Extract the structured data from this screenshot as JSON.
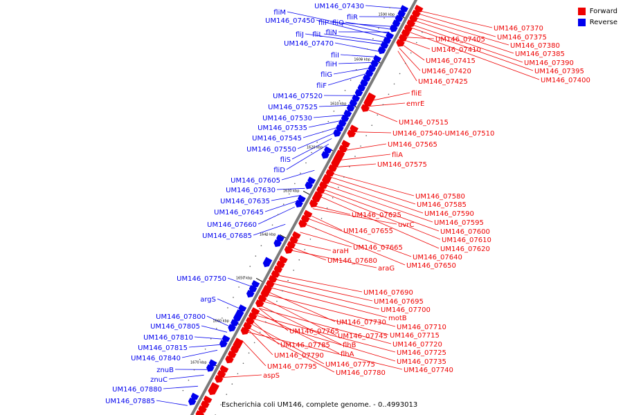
{
  "legend": [
    {
      "label": "Forward",
      "color": "#ee0000"
    },
    {
      "label": "Reverse",
      "color": "#0000ee"
    }
  ],
  "caption": "Escherichia coli UM146, complete genome. - 0..4993013",
  "colors": {
    "forward": "#ee0000",
    "reverse": "#0000ee",
    "backbone": "#808080",
    "tick": "#000000"
  },
  "ticks": [
    "1590 kbp",
    "1600 kbp",
    "1610 kbp",
    "1620 kbp",
    "1630 kbp",
    "1640 kbp",
    "1650 kbp",
    "1660 kbp",
    "1670 kbp"
  ],
  "forward_labels": [
    "UM146_07370",
    "UM146_07375",
    "UM146_07380",
    "UM146_07385",
    "UM146_07390",
    "UM146_07395",
    "UM146_07400",
    "UM146_07405",
    "UM146_07410",
    "UM146_07415",
    "UM146_07420",
    "UM146_07425",
    "fliE",
    "emrE",
    "UM146_07515",
    "UM146_07540-UM146_07510",
    "UM146_07565",
    "fliA",
    "UM146_07575",
    "UM146_07580",
    "UM146_07585",
    "UM146_07590",
    "UM146_07595",
    "UM146_07600",
    "UM146_07610",
    "UM146_07620",
    "UM146_07625",
    "uvrC",
    "UM146_07655",
    "UM146_07665",
    "araH",
    "UM146_07640",
    "UM146_07650",
    "UM146_07680",
    "araG",
    "UM146_07690",
    "UM146_07695",
    "UM146_07700",
    "motB",
    "UM146_07730",
    "UM146_07710",
    "UM146_07765",
    "UM146_07745",
    "UM146_07715",
    "UM146_07785",
    "flhB",
    "UM146_07720",
    "flhA",
    "UM146_07725",
    "UM146_07790",
    "UM146_07735",
    "UM146_07775",
    "UM146_07795",
    "UM146_07780",
    "UM146_07740",
    "aspS"
  ],
  "reverse_labels": [
    "UM146_07430",
    "fliM",
    "fliR",
    "UM146_07450",
    "fliP",
    "fliQ",
    "fliN",
    "fliJ",
    "fliL",
    "UM146_07470",
    "fliI",
    "fliH",
    "fliG",
    "fliF",
    "UM146_07520",
    "UM146_07525",
    "UM146_07530",
    "UM146_07535",
    "UM146_07545",
    "UM146_07550",
    "fliS",
    "fliD",
    "UM146_07605",
    "UM146_07630",
    "UM146_07635",
    "UM146_07645",
    "UM146_07660",
    "UM146_07685",
    "UM146_07750",
    "argS",
    "UM146_07800",
    "UM146_07805",
    "UM146_07810",
    "UM146_07815",
    "UM146_07840",
    "znuB",
    "znuC",
    "UM146_07880",
    "UM146_07885"
  ]
}
